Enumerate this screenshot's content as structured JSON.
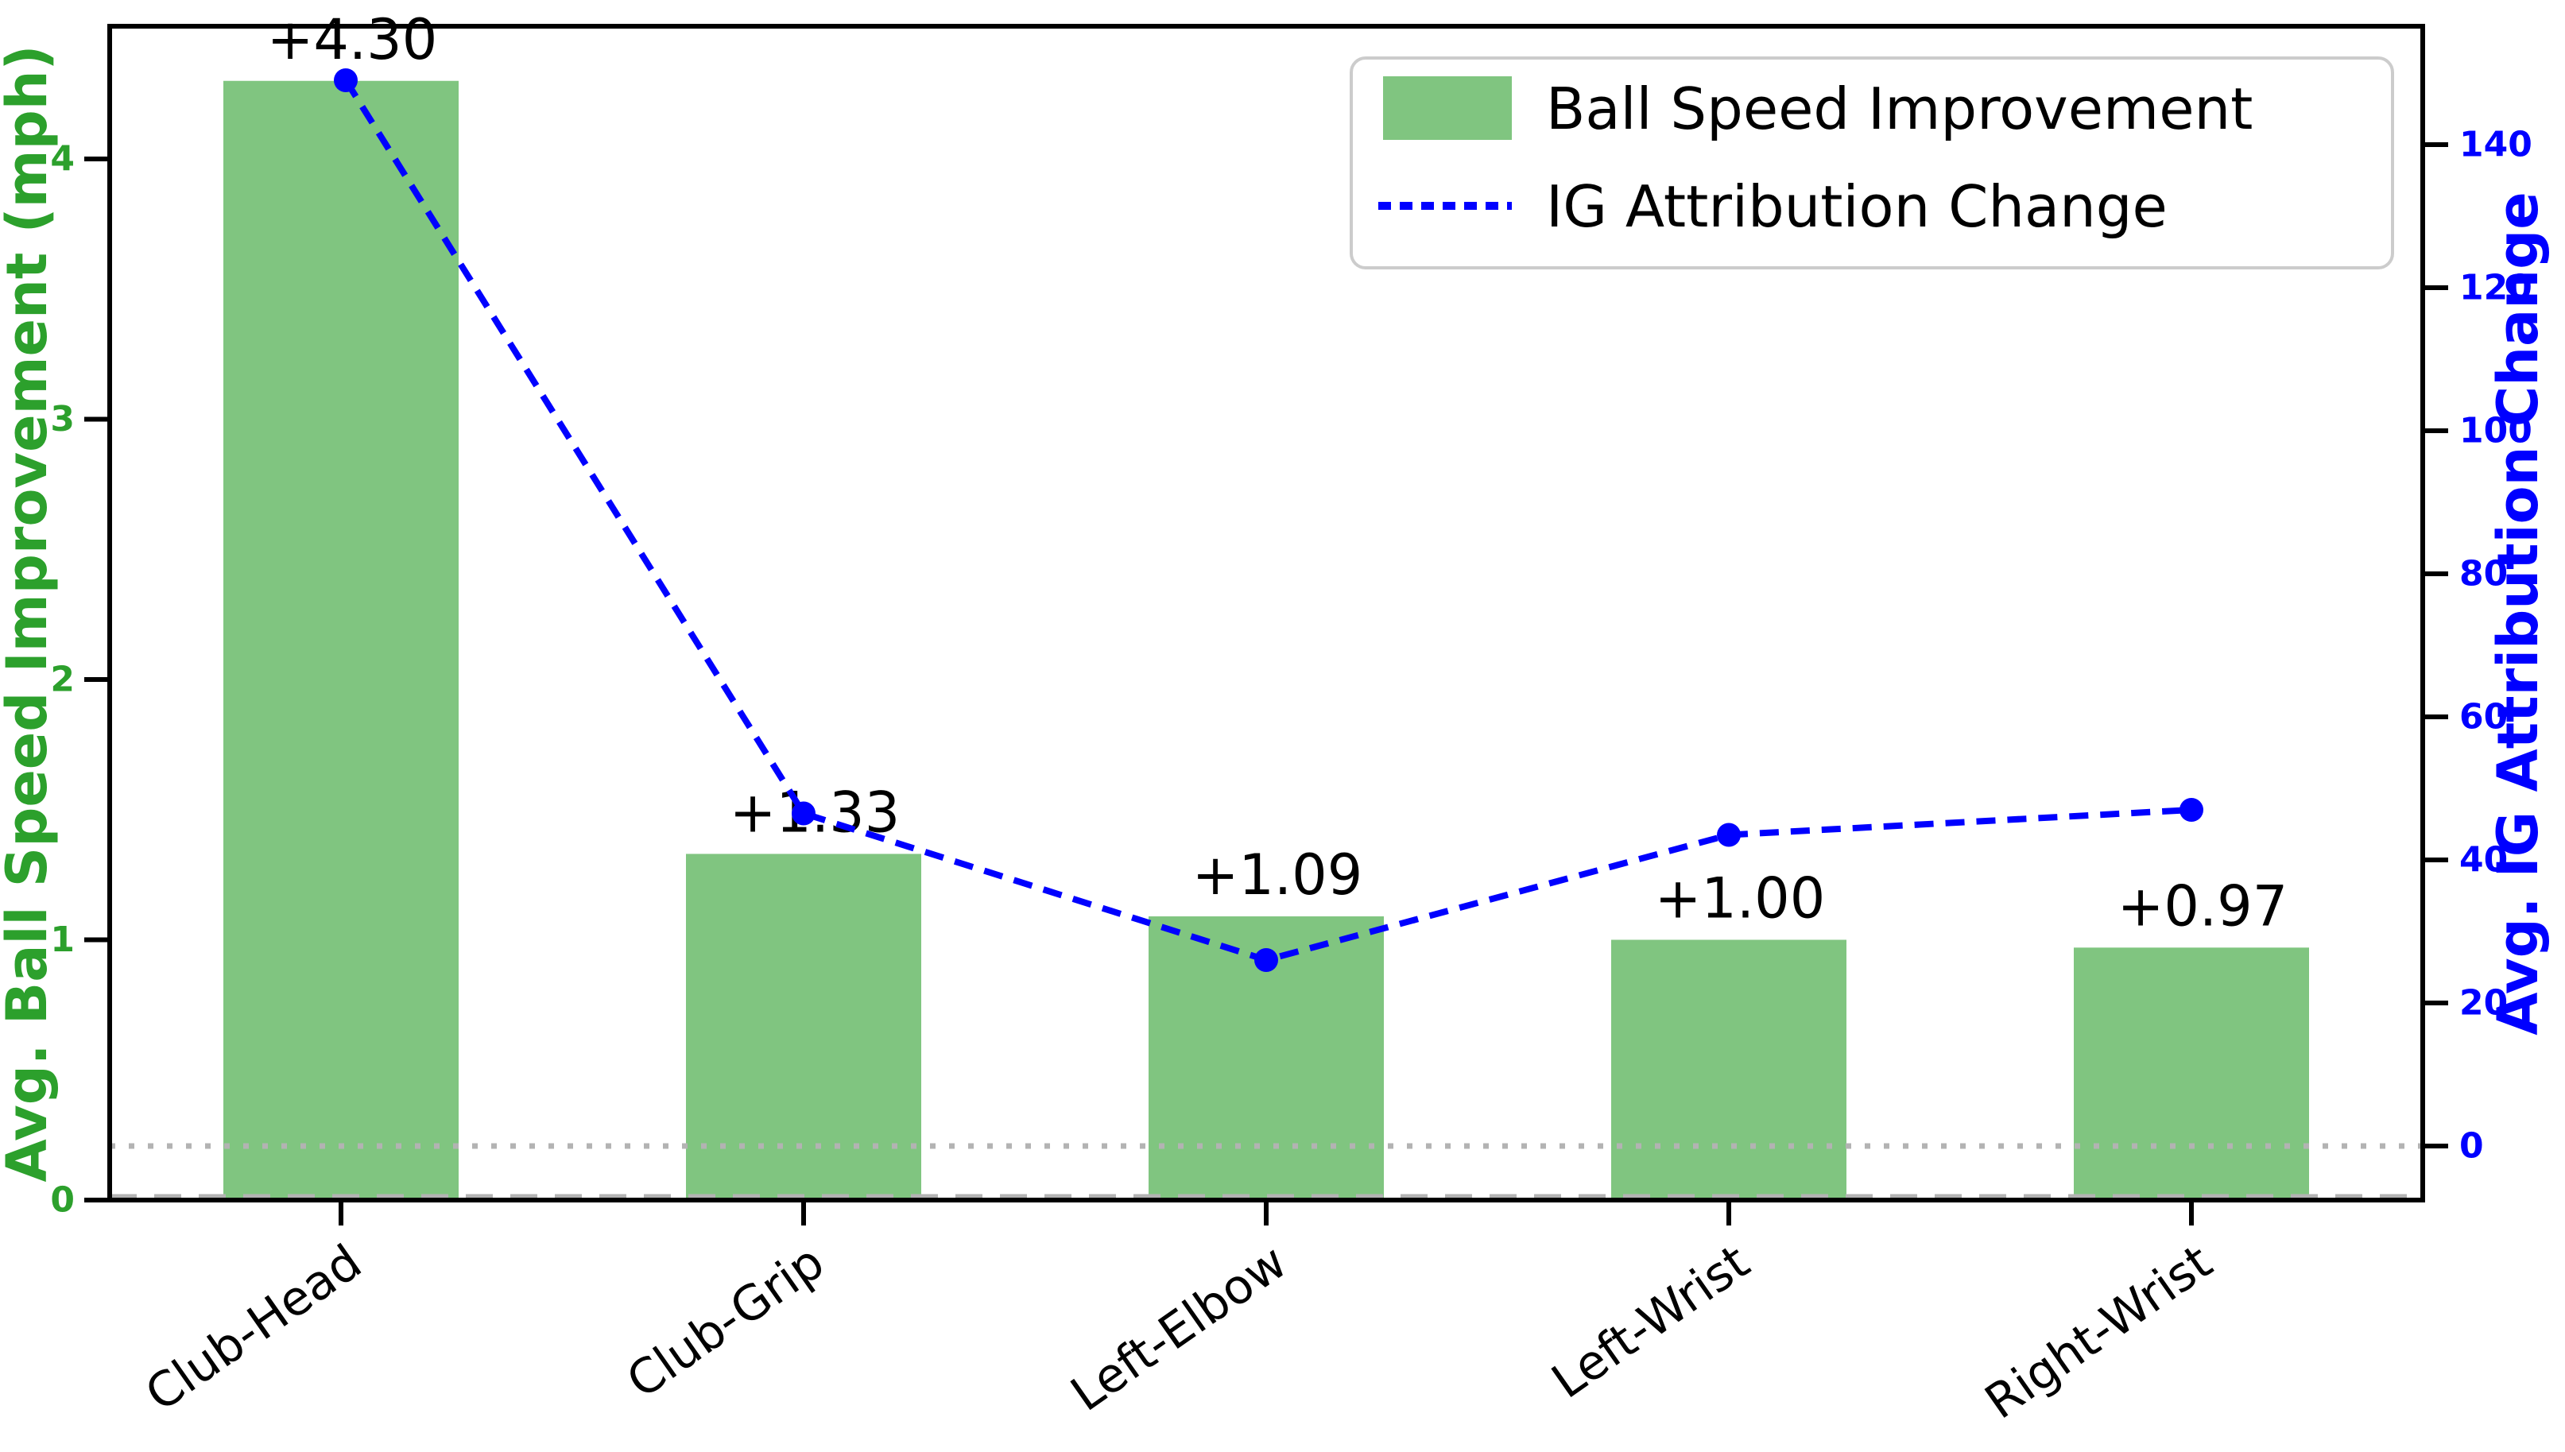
{
  "chart_data": {
    "type": "bar",
    "subtype": "dual-axis bar + dashed line overlay",
    "categories": [
      "Club-Head",
      "Club-Grip",
      "Left-Elbow",
      "Left-Wrist",
      "Right-Wrist"
    ],
    "series": [
      {
        "name": "Ball Speed Improvement",
        "type": "bar",
        "axis": "left",
        "values": [
          4.3,
          1.33,
          1.09,
          1.0,
          0.97
        ],
        "value_labels": [
          "+4.30",
          "+1.33",
          "+1.09",
          "+1.00",
          "+0.97"
        ],
        "color": "#80c580"
      },
      {
        "name": "IG Attribution Change",
        "type": "line",
        "axis": "right",
        "style": "dashed",
        "marker": "circle",
        "values": [
          149,
          46.5,
          26,
          43.5,
          47
        ],
        "color": "#0000ff"
      }
    ],
    "left_axis": {
      "label": "Avg. Ball Speed Improvement (mph)",
      "ticks": [
        0,
        1,
        2,
        3,
        4
      ],
      "range": [
        0,
        4.51
      ],
      "color": "#2ca02c"
    },
    "right_axis": {
      "label": "Avg. IG Attribution Change",
      "ticks": [
        0,
        20,
        40,
        60,
        80,
        100,
        120,
        140
      ],
      "range": [
        -7.6,
        156.6
      ],
      "color": "#0000ff"
    },
    "reference_lines": [
      {
        "axis": "right",
        "value": 0,
        "style": "dotted",
        "color": "#b3b3b3"
      },
      {
        "axis": "left",
        "value": 0,
        "style": "dashed",
        "color": "#b3b3b3"
      }
    ],
    "legend": {
      "position": "upper right",
      "entries": [
        "Ball Speed Improvement",
        "IG Attribution Change"
      ]
    },
    "x_tick_rotation_deg": 35,
    "grid": false,
    "title": ""
  }
}
